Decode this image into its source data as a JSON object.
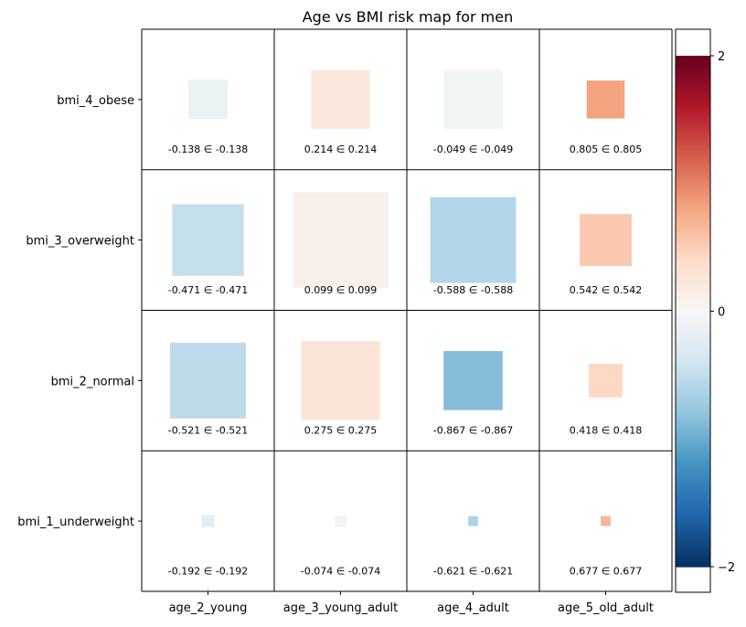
{
  "chart_data": {
    "type": "heatmap",
    "title": "Age vs BMI risk map for men",
    "xlabel": "",
    "ylabel": "",
    "x_categories": [
      "age_2_young",
      "age_3_young_adult",
      "age_4_adult",
      "age_5_old_adult"
    ],
    "y_categories": [
      "bmi_4_obese",
      "bmi_3_overweight",
      "bmi_2_normal",
      "bmi_1_underweight"
    ],
    "values": [
      [
        -0.138,
        0.214,
        -0.049,
        0.805
      ],
      [
        -0.471,
        0.099,
        -0.588,
        0.542
      ],
      [
        -0.521,
        0.275,
        -0.867,
        0.418
      ],
      [
        -0.192,
        -0.074,
        -0.621,
        0.677
      ]
    ],
    "cell_labels": [
      [
        "-0.138 ∈ -0.138",
        "0.214 ∈ 0.214",
        "-0.049 ∈ -0.049",
        "0.805 ∈ 0.805"
      ],
      [
        "-0.471 ∈ -0.471",
        "0.099 ∈ 0.099",
        "-0.588 ∈ -0.588",
        "0.542 ∈ 0.542"
      ],
      [
        "-0.521 ∈ -0.521",
        "0.275 ∈ 0.275",
        "-0.867 ∈ -0.867",
        "0.418 ∈ 0.418"
      ],
      [
        "-0.192 ∈ -0.192",
        "-0.074 ∈ -0.074",
        "-0.621 ∈ -0.621",
        "0.677 ∈ 0.677"
      ]
    ],
    "square_size_fraction": [
      [
        0.28,
        0.42,
        0.42,
        0.27
      ],
      [
        0.51,
        0.68,
        0.61,
        0.37
      ],
      [
        0.54,
        0.56,
        0.42,
        0.24
      ],
      [
        0.09,
        0.08,
        0.07,
        0.07
      ]
    ],
    "colorbar": {
      "min": -2,
      "max": 2,
      "ticks": [
        2,
        0,
        -2
      ],
      "tick_labels": [
        "2",
        "0",
        "−2"
      ],
      "colormap": "RdBu_r"
    },
    "grid": true
  }
}
